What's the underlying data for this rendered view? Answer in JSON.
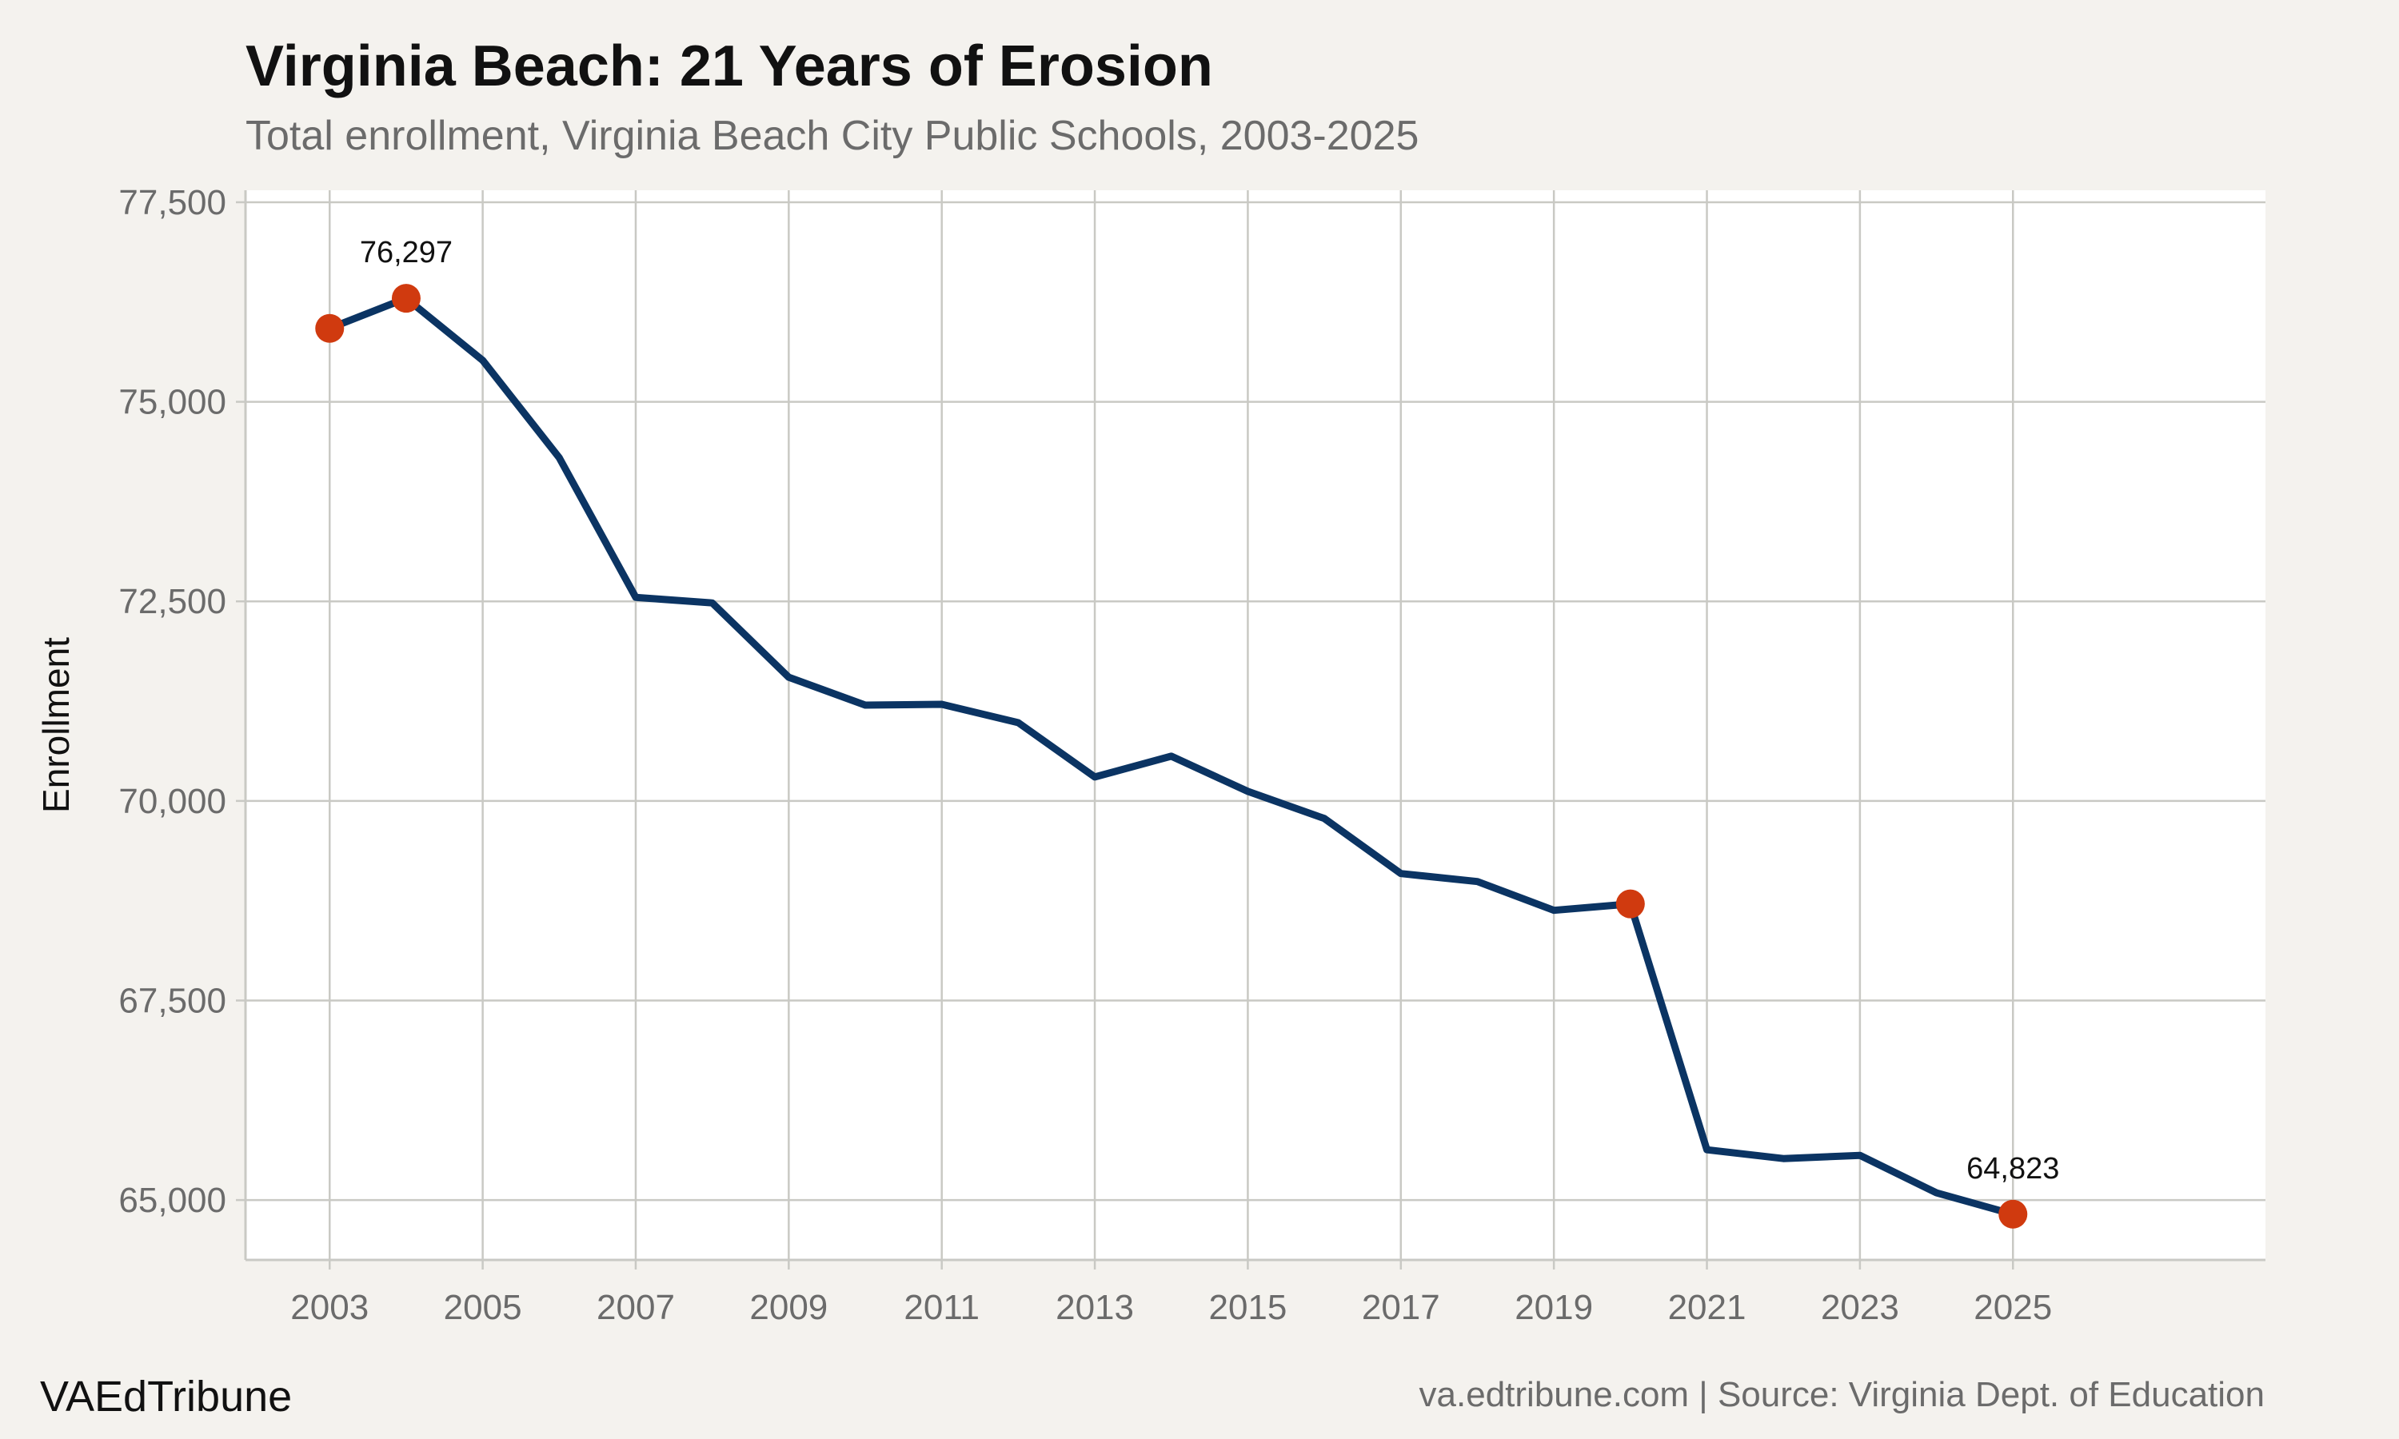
{
  "header": {
    "title": "Virginia Beach: 21 Years of Erosion",
    "subtitle": "Total enrollment, Virginia Beach City Public Schools, 2003-2025"
  },
  "footer": {
    "brand": "VAEdTribune",
    "caption": "va.edtribune.com | Source: Virginia Dept. of Education"
  },
  "chart_data": {
    "type": "line",
    "title": "Virginia Beach: 21 Years of Erosion",
    "subtitle": "Total enrollment, Virginia Beach City Public Schools, 2003-2025",
    "xlabel": "",
    "ylabel": "Enrollment",
    "x": [
      2003,
      2004,
      2005,
      2006,
      2007,
      2008,
      2009,
      2010,
      2011,
      2012,
      2013,
      2014,
      2015,
      2016,
      2017,
      2018,
      2019,
      2020,
      2021,
      2022,
      2023,
      2024,
      2025
    ],
    "series": [
      {
        "values": [
          75920,
          76297,
          75520,
          74300,
          72550,
          72480,
          71550,
          71200,
          71210,
          70980,
          70300,
          70560,
          70120,
          69780,
          69090,
          68990,
          68630,
          68710,
          65630,
          65520,
          65560,
          65090,
          64823
        ]
      }
    ],
    "highlight_points": [
      {
        "x": 2003,
        "y": 75920
      },
      {
        "x": 2004,
        "y": 76297,
        "label": "76,297"
      },
      {
        "x": 2020,
        "y": 68710
      },
      {
        "x": 2025,
        "y": 64823,
        "label": "64,823"
      }
    ],
    "xlim": [
      2001.9,
      2028.3
    ],
    "ylim": [
      64250,
      77650
    ],
    "xticks": [
      "2003",
      "2005",
      "2007",
      "2009",
      "2011",
      "2013",
      "2015",
      "2017",
      "2019",
      "2021",
      "2023",
      "2025"
    ],
    "yticks": [
      "65,000",
      "67,500",
      "70,000",
      "72,500",
      "75,000",
      "77,500"
    ],
    "grid": true,
    "colors": {
      "line": "#0b3463",
      "highlight": "#d03a0f",
      "plot_background": "#ffffff",
      "page_background": "#f4f2ee",
      "grid": "#c9c9c4"
    }
  }
}
